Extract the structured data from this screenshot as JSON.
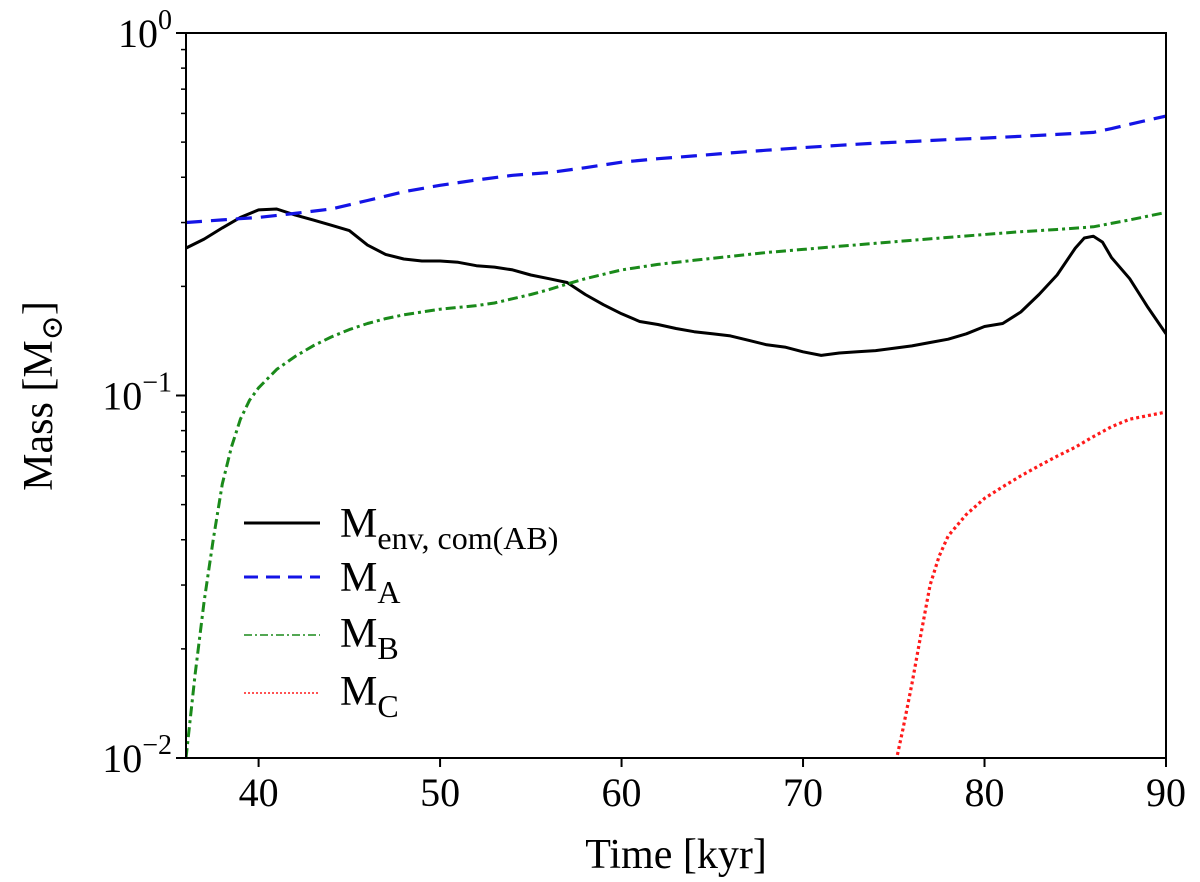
{
  "chart_data": {
    "type": "line",
    "title": "",
    "xlabel": "Time [kyr]",
    "ylabel_main": "Mass [M",
    "ylabel_sub": "⊙",
    "ylabel_close": "]",
    "xlim": [
      36,
      90
    ],
    "ylim": [
      0.01,
      1.0
    ],
    "yscale": "log",
    "xticks": [
      {
        "value": 40,
        "label": "40"
      },
      {
        "value": 50,
        "label": "50"
      },
      {
        "value": 60,
        "label": "60"
      },
      {
        "value": 70,
        "label": "70"
      },
      {
        "value": 80,
        "label": "80"
      },
      {
        "value": 90,
        "label": "90"
      }
    ],
    "yticks": [
      {
        "value": 0.01,
        "base": "10",
        "exp": "−2"
      },
      {
        "value": 0.1,
        "base": "10",
        "exp": "−1"
      },
      {
        "value": 1.0,
        "base": "10",
        "exp": "0"
      }
    ],
    "legend_position": "lower-left",
    "series": [
      {
        "name": "M_env, com(AB)",
        "label_main": "M",
        "label_sub": "env, com(AB)",
        "color": "#000000",
        "style": "solid",
        "x": [
          36,
          37,
          38,
          39,
          40,
          41,
          42,
          43,
          44,
          45,
          46,
          47,
          48,
          49,
          50,
          51,
          52,
          53,
          54,
          55,
          56,
          57,
          58,
          59,
          60,
          61,
          62,
          63,
          64,
          65,
          66,
          67,
          68,
          69,
          70,
          71,
          72,
          73,
          74,
          75,
          76,
          77,
          78,
          79,
          80,
          81,
          82,
          83,
          84,
          85,
          85.5,
          86,
          86.5,
          87,
          88,
          89,
          90
        ],
        "y": [
          0.255,
          0.27,
          0.29,
          0.31,
          0.325,
          0.327,
          0.315,
          0.305,
          0.295,
          0.285,
          0.26,
          0.245,
          0.238,
          0.235,
          0.235,
          0.233,
          0.228,
          0.226,
          0.222,
          0.215,
          0.21,
          0.205,
          0.19,
          0.178,
          0.168,
          0.16,
          0.157,
          0.153,
          0.15,
          0.148,
          0.146,
          0.142,
          0.138,
          0.136,
          0.132,
          0.129,
          0.131,
          0.132,
          0.133,
          0.135,
          0.137,
          0.14,
          0.143,
          0.148,
          0.155,
          0.158,
          0.17,
          0.19,
          0.215,
          0.255,
          0.272,
          0.275,
          0.265,
          0.24,
          0.21,
          0.175,
          0.148
        ]
      },
      {
        "name": "M_A",
        "label_main": "M",
        "label_sub": "A",
        "color": "#1414e6",
        "style": "dashed",
        "x": [
          36,
          38,
          40,
          42,
          44,
          46,
          48,
          50,
          52,
          54,
          56,
          58,
          60,
          62,
          64,
          66,
          68,
          70,
          72,
          74,
          76,
          78,
          80,
          82,
          84,
          86,
          87,
          88,
          89,
          90
        ],
        "y": [
          0.3,
          0.305,
          0.31,
          0.318,
          0.327,
          0.345,
          0.365,
          0.38,
          0.393,
          0.405,
          0.412,
          0.425,
          0.44,
          0.45,
          0.458,
          0.467,
          0.475,
          0.483,
          0.49,
          0.497,
          0.502,
          0.508,
          0.513,
          0.519,
          0.525,
          0.532,
          0.545,
          0.56,
          0.575,
          0.59
        ]
      },
      {
        "name": "M_B",
        "label_main": "M",
        "label_sub": "B",
        "color": "#1a8a1a",
        "style": "dashdot",
        "x": [
          36,
          36.5,
          37,
          37.5,
          38,
          38.5,
          39,
          39.5,
          40,
          41,
          42,
          43,
          44,
          45,
          46,
          47,
          48,
          49,
          50,
          51,
          52,
          53,
          54,
          55,
          56,
          57,
          58,
          59,
          60,
          62,
          64,
          66,
          68,
          70,
          72,
          74,
          76,
          78,
          80,
          82,
          84,
          86,
          88,
          90
        ],
        "y": [
          0.01,
          0.017,
          0.027,
          0.04,
          0.057,
          0.072,
          0.086,
          0.097,
          0.105,
          0.118,
          0.128,
          0.137,
          0.145,
          0.152,
          0.158,
          0.163,
          0.167,
          0.17,
          0.173,
          0.175,
          0.177,
          0.18,
          0.185,
          0.19,
          0.196,
          0.203,
          0.21,
          0.216,
          0.222,
          0.23,
          0.236,
          0.242,
          0.248,
          0.253,
          0.258,
          0.263,
          0.268,
          0.273,
          0.278,
          0.283,
          0.287,
          0.292,
          0.305,
          0.32
        ]
      },
      {
        "name": "M_C",
        "label_main": "M",
        "label_sub": "C",
        "color": "#ff1a1a",
        "style": "dotted",
        "x": [
          75.2,
          75.5,
          76,
          76.5,
          77,
          77.5,
          78,
          79,
          80,
          81,
          82,
          83,
          84,
          85,
          86,
          87,
          88,
          89,
          90
        ],
        "y": [
          0.0102,
          0.012,
          0.016,
          0.022,
          0.03,
          0.036,
          0.041,
          0.047,
          0.052,
          0.056,
          0.06,
          0.064,
          0.068,
          0.072,
          0.077,
          0.082,
          0.086,
          0.088,
          0.09
        ]
      }
    ]
  }
}
